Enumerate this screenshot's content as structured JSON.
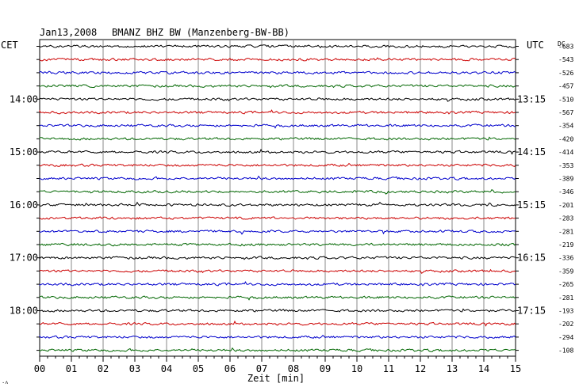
{
  "header": {
    "date": "Jan13,2008",
    "station": "BMANZ BHZ BW (Manzenberg-BW-BB)",
    "left_tz": "CET",
    "right_tz": "UTC",
    "dc_label": "DC"
  },
  "corner_mark": "·˄",
  "chart_data": {
    "type": "line",
    "xlabel": "Zeit [min]",
    "x_ticks": [
      "00",
      "01",
      "02",
      "03",
      "04",
      "05",
      "06",
      "07",
      "08",
      "09",
      "10",
      "11",
      "12",
      "13",
      "14",
      "15"
    ],
    "xlim": [
      0,
      15
    ],
    "trace_colors": [
      "#000000",
      "#cc0000",
      "#0000cc",
      "#006600"
    ],
    "left_hour_labels": [
      {
        "trace": 4,
        "label": "14:00"
      },
      {
        "trace": 8,
        "label": "15:00"
      },
      {
        "trace": 12,
        "label": "16:00"
      },
      {
        "trace": 16,
        "label": "17:00"
      },
      {
        "trace": 20,
        "label": "18:00"
      }
    ],
    "right_hour_labels": [
      {
        "trace": 4,
        "label": "13:15"
      },
      {
        "trace": 8,
        "label": "14:15"
      },
      {
        "trace": 12,
        "label": "15:15"
      },
      {
        "trace": 16,
        "label": "16:15"
      },
      {
        "trace": 20,
        "label": "17:15"
      }
    ],
    "dc_offsets": [
      "-683",
      "-543",
      "-526",
      "-457",
      "-510",
      "-567",
      "-354",
      "-420",
      "-414",
      "-353",
      "-389",
      "-346",
      "-201",
      "-283",
      "-281",
      "-219",
      "-336",
      "-359",
      "-265",
      "-281",
      "-193",
      "-202",
      "-294",
      "-108"
    ]
  }
}
